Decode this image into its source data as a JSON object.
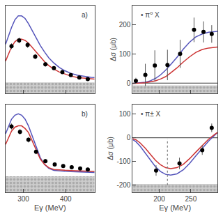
{
  "chart_data": [
    {
      "type": "line",
      "xlim": [
        258,
        468
      ],
      "ylim": [
        -0.08,
        0.6
      ],
      "xticks": [
        300,
        400
      ],
      "yticks": [],
      "tick_labels": false,
      "grid": false,
      "annotations": [
        {
          "text": "a)"
        }
      ],
      "band": {
        "y_from": -0.08,
        "y_to": 0.005,
        "color": "#cccccc",
        "pattern_color": "#aaaaaa"
      },
      "series": [
        {
          "color": "#5555bb",
          "x": [
            258,
            265,
            272,
            280,
            288,
            296,
            304,
            312,
            320,
            330,
            340,
            350,
            360,
            372,
            385,
            398,
            412,
            428,
            445,
            460,
            468
          ],
          "values": [
            0.3,
            0.37,
            0.43,
            0.49,
            0.52,
            0.52,
            0.5,
            0.46,
            0.41,
            0.35,
            0.29,
            0.24,
            0.195,
            0.155,
            0.12,
            0.095,
            0.075,
            0.06,
            0.05,
            0.044,
            0.042
          ]
        },
        {
          "color": "#cc3333",
          "x": [
            258,
            265,
            272,
            280,
            288,
            296,
            304,
            312,
            320,
            330,
            340,
            350,
            360,
            372,
            385,
            398,
            412,
            428,
            445,
            460,
            468
          ],
          "values": [
            0.17,
            0.23,
            0.28,
            0.32,
            0.34,
            0.34,
            0.33,
            0.31,
            0.28,
            0.24,
            0.2,
            0.165,
            0.135,
            0.108,
            0.085,
            0.068,
            0.054,
            0.043,
            0.036,
            0.032,
            0.03
          ]
        },
        {
          "type": "scatter",
          "color": "black",
          "error_color": "#555555",
          "x": [
            272,
            290,
            310,
            328,
            352,
            372,
            392,
            412,
            432,
            452
          ],
          "values": [
            0.285,
            0.33,
            0.295,
            0.205,
            0.145,
            0.115,
            0.085,
            0.062,
            0.042,
            0.03
          ],
          "errors": [
            0.022,
            0.022,
            0.022,
            0.02,
            0.018,
            0.016,
            0.014,
            0.012,
            0.011,
            0.01
          ]
        }
      ]
    },
    {
      "type": "line",
      "xlim": [
        258,
        468
      ],
      "ylim": [
        -0.28,
        0.38
      ],
      "xticks": [
        300,
        400
      ],
      "yticks": [],
      "tick_labels": "x",
      "grid": false,
      "xlabel": "Eγ (MeV)",
      "annotations": [
        {
          "text": "b)"
        }
      ],
      "band": {
        "y_from": -0.28,
        "y_to": -0.16,
        "color": "#cccccc",
        "pattern_color": "#aaaaaa"
      },
      "series": [
        {
          "color": "#5555bb",
          "x": [
            258,
            265,
            272,
            280,
            288,
            296,
            304,
            312,
            320,
            330,
            340,
            350,
            360,
            372,
            385,
            398,
            412,
            428,
            445,
            460,
            468
          ],
          "values": [
            0.16,
            0.22,
            0.27,
            0.3,
            0.31,
            0.3,
            0.27,
            0.22,
            0.15,
            0.06,
            -0.02,
            -0.07,
            -0.1,
            -0.115,
            -0.12,
            -0.122,
            -0.124,
            -0.126,
            -0.128,
            -0.13,
            -0.131
          ]
        },
        {
          "color": "#cc3333",
          "x": [
            258,
            265,
            272,
            280,
            288,
            296,
            304,
            312,
            320,
            330,
            340,
            350,
            360,
            372,
            385,
            398,
            412,
            428,
            445,
            460,
            468
          ],
          "values": [
            0.08,
            0.13,
            0.18,
            0.21,
            0.22,
            0.22,
            0.2,
            0.17,
            0.11,
            0.04,
            -0.03,
            -0.07,
            -0.095,
            -0.108,
            -0.112,
            -0.114,
            -0.116,
            -0.118,
            -0.12,
            -0.122,
            -0.123
          ]
        },
        {
          "type": "scatter",
          "color": "black",
          "error_color": "#555555",
          "x": [
            272,
            292,
            312,
            330,
            352,
            374,
            394,
            414,
            434,
            452
          ],
          "values": [
            0.215,
            0.175,
            0.115,
            0.025,
            -0.045,
            -0.07,
            -0.082,
            -0.092,
            -0.1,
            -0.108
          ],
          "errors": [
            0.022,
            0.02,
            0.02,
            0.018,
            0.016,
            0.015,
            0.014,
            0.013,
            0.012,
            0.012
          ]
        }
      ]
    },
    {
      "type": "line",
      "xlim": [
        158,
        292
      ],
      "ylim": [
        -35,
        265
      ],
      "xticks": [
        200,
        250
      ],
      "yticks": [
        0,
        100,
        200
      ],
      "tick_labels": "y",
      "grid": false,
      "ylabel": "Δσ (μb)",
      "annotations": [
        {
          "text": "• π⁰ X"
        }
      ],
      "hlines": [
        0
      ],
      "band": {
        "y_from": -35,
        "y_to": -8,
        "color": "#cccccc",
        "pattern_color": "#aaaaaa"
      },
      "series": [
        {
          "color": "#5555bb",
          "x": [
            158,
            163,
            170,
            178,
            186,
            194,
            202,
            210,
            218,
            228,
            238,
            248,
            258,
            268,
            278,
            288,
            292
          ],
          "values": [
            -1,
            0,
            1,
            3,
            8,
            16,
            28,
            44,
            63,
            88,
            116,
            140,
            158,
            168,
            174,
            176,
            177
          ]
        },
        {
          "color": "#cc3333",
          "x": [
            158,
            163,
            170,
            178,
            186,
            194,
            202,
            210,
            218,
            228,
            238,
            248,
            258,
            268,
            278,
            288,
            292
          ],
          "values": [
            -1,
            0,
            0,
            1,
            4,
            8,
            14,
            22,
            35,
            52,
            72,
            90,
            105,
            115,
            120,
            122,
            123
          ]
        },
        {
          "type": "scatter",
          "color": "black",
          "error_color": "#555555",
          "x": [
            163,
            178,
            193,
            213,
            233,
            255,
            270,
            283
          ],
          "values": [
            8,
            28,
            60,
            62,
            100,
            182,
            175,
            168
          ],
          "errors": [
            10,
            38,
            52,
            52,
            48,
            42,
            36,
            30
          ]
        }
      ]
    },
    {
      "type": "line",
      "xlim": [
        158,
        292
      ],
      "ylim": [
        -230,
        140
      ],
      "xticks": [
        200,
        250
      ],
      "yticks": [
        -200,
        -100,
        0,
        100
      ],
      "grid": false,
      "xlabel": "Eγ (MeV)",
      "ylabel": "Δσ (μb)",
      "annotations": [
        {
          "text": "• π± X"
        }
      ],
      "hlines": [
        0
      ],
      "vlines": [
        {
          "x": 213,
          "y_from": -200,
          "y_to": -5,
          "line_style": "dotted",
          "color": "gray"
        }
      ],
      "band": {
        "y_from": -230,
        "y_to": -195,
        "color": "#cccccc",
        "pattern_color": "#aaaaaa"
      },
      "series": [
        {
          "color": "#5555bb",
          "x": [
            158,
            163,
            170,
            178,
            186,
            194,
            202,
            210,
            218,
            228,
            238,
            248,
            258,
            268,
            278,
            288,
            292
          ],
          "values": [
            -8,
            -16,
            -36,
            -65,
            -96,
            -122,
            -142,
            -154,
            -157,
            -152,
            -135,
            -108,
            -76,
            -44,
            -14,
            12,
            22
          ]
        },
        {
          "color": "#cc3333",
          "x": [
            158,
            163,
            170,
            178,
            186,
            194,
            202,
            210,
            218,
            228,
            238,
            248,
            258,
            268,
            278,
            288,
            292
          ],
          "values": [
            -4,
            -8,
            -22,
            -44,
            -70,
            -95,
            -114,
            -126,
            -130,
            -126,
            -112,
            -88,
            -60,
            -32,
            -6,
            15,
            22
          ]
        },
        {
          "type": "scatter",
          "color": "black",
          "error_color": "#555555",
          "x": [
            195,
            232,
            268,
            283
          ],
          "values": [
            -138,
            -108,
            -52,
            42
          ],
          "errors": [
            22,
            24,
            20,
            18
          ]
        }
      ]
    }
  ]
}
